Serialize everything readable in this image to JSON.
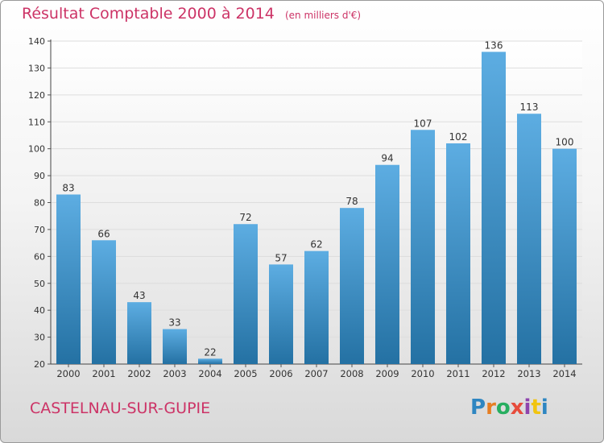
{
  "title": "Résultat Comptable 2000 à 2014",
  "unit": "(en milliers d'€)",
  "commune": "CASTELNAU-SUR-GUPIE",
  "logo": {
    "letters": [
      "P",
      "r",
      "o",
      "x",
      "i",
      "t",
      "i"
    ],
    "colors": [
      "#2e86c1",
      "#e67e22",
      "#27ae60",
      "#e74c3c",
      "#8e44ad",
      "#f1c40f",
      "#2e86c1"
    ]
  },
  "colors": {
    "bar_top": "#5dade2",
    "bar_bottom": "#2471a3",
    "title": "#cc3366",
    "grid": "#dddddd"
  },
  "chart_data": {
    "type": "bar",
    "categories": [
      "2000",
      "2001",
      "2002",
      "2003",
      "2004",
      "2005",
      "2006",
      "2007",
      "2008",
      "2009",
      "2010",
      "2011",
      "2012",
      "2013",
      "2014"
    ],
    "values": [
      83,
      66,
      43,
      33,
      22,
      72,
      57,
      62,
      78,
      94,
      107,
      102,
      136,
      113,
      100
    ],
    "ylim": [
      20,
      140
    ],
    "yticks": [
      20,
      30,
      40,
      50,
      60,
      70,
      80,
      90,
      100,
      110,
      120,
      130,
      140
    ],
    "grid": true
  }
}
